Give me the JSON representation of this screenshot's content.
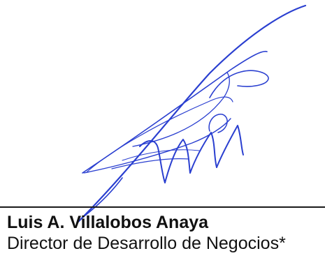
{
  "signer": {
    "name": "Luis A. Villalobos Anaya",
    "title": "Director de Desarrollo de Negocios*"
  },
  "signature": {
    "ink_color": "#2a3fd0"
  }
}
